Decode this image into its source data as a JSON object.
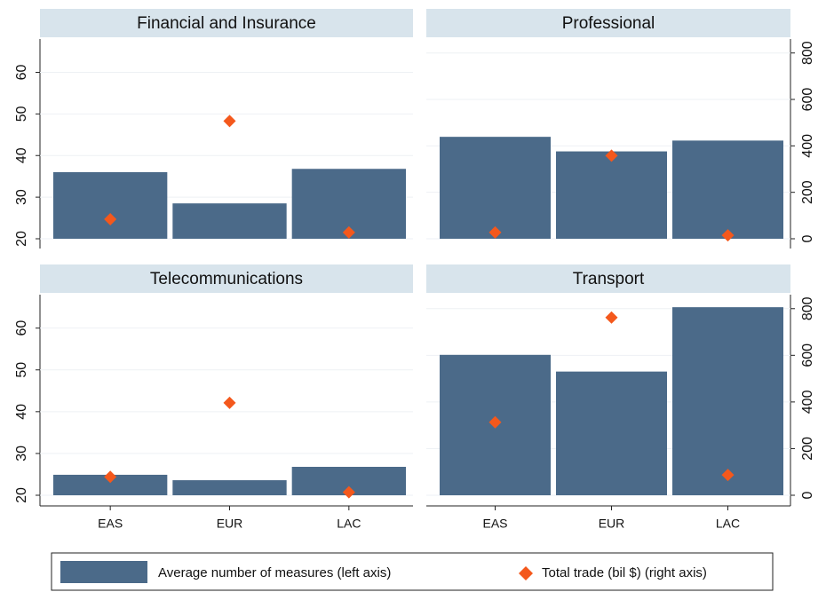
{
  "chart_data": [
    {
      "type": "bar",
      "title": "Financial and Insurance",
      "categories": [
        "EAS",
        "EUR",
        "LAC"
      ],
      "series": [
        {
          "name": "Average number of measures (left axis)",
          "color": "#4b6a89",
          "values": [
            36,
            28.5,
            36.8
          ]
        },
        {
          "name": "Total trade (bil $) (right axis)",
          "color": "#f4581c",
          "values": [
            84,
            507,
            27
          ],
          "axis": "y2"
        }
      ],
      "ylim": [
        20,
        68
      ],
      "yticks": [
        20,
        30,
        40,
        50,
        60
      ],
      "y2lim": [
        0,
        860
      ],
      "grid": true
    },
    {
      "type": "bar",
      "title": "Professional",
      "categories": [
        "EAS",
        "EUR",
        "LAC"
      ],
      "series": [
        {
          "name": "Average number of measures (left axis)",
          "color": "#4b6a89",
          "values": [
            44.5,
            41,
            43.6
          ]
        },
        {
          "name": "Total trade (bil $) (right axis)",
          "color": "#f4581c",
          "values": [
            27,
            358,
            15
          ],
          "axis": "y2"
        }
      ],
      "ylim": [
        20,
        68
      ],
      "y2lim": [
        0,
        860
      ],
      "y2ticks": [
        0,
        200,
        400,
        600,
        800
      ],
      "grid": true
    },
    {
      "type": "bar",
      "title": "Telecommunications",
      "categories": [
        "EAS",
        "EUR",
        "LAC"
      ],
      "series": [
        {
          "name": "Average number of measures (left axis)",
          "color": "#4b6a89",
          "values": [
            24.9,
            23.6,
            26.8
          ]
        },
        {
          "name": "Total trade (bil $) (right axis)",
          "color": "#f4581c",
          "values": [
            79,
            396,
            13
          ],
          "axis": "y2"
        }
      ],
      "ylim": [
        20,
        68
      ],
      "yticks": [
        20,
        30,
        40,
        50,
        60
      ],
      "y2lim": [
        0,
        860
      ],
      "grid": true
    },
    {
      "type": "bar",
      "title": "Transport",
      "categories": [
        "EAS",
        "EUR",
        "LAC"
      ],
      "series": [
        {
          "name": "Average number of measures (left axis)",
          "color": "#4b6a89",
          "values": [
            53.6,
            49.6,
            65
          ]
        },
        {
          "name": "Total trade (bil $) (right axis)",
          "color": "#f4581c",
          "values": [
            313,
            762,
            87
          ],
          "axis": "y2"
        }
      ],
      "ylim": [
        20,
        68
      ],
      "y2lim": [
        0,
        860
      ],
      "y2ticks": [
        0,
        200,
        400,
        600,
        800
      ],
      "grid": true
    }
  ]
}
